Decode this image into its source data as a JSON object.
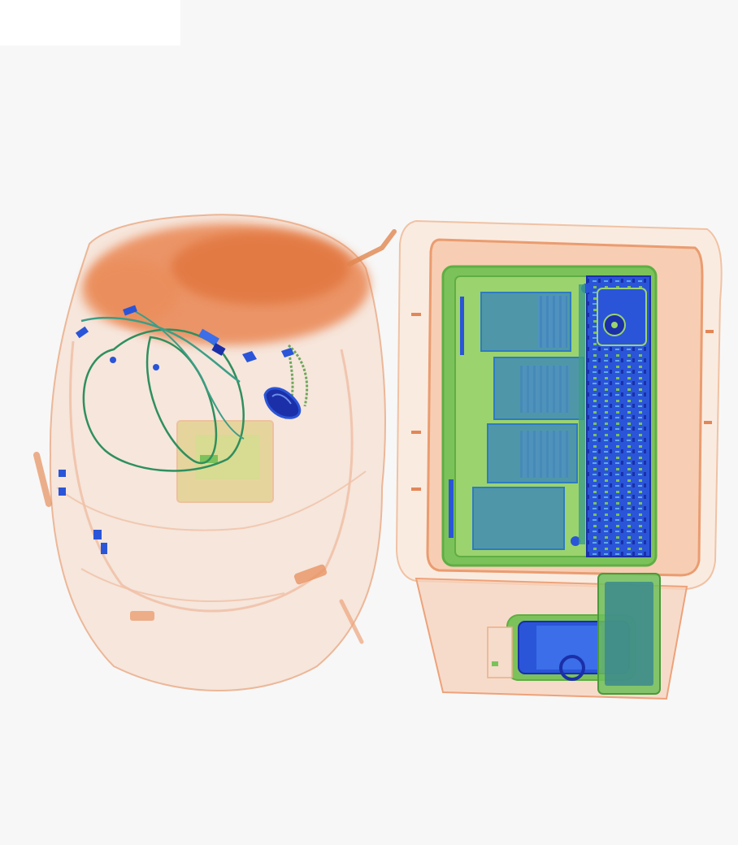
{
  "scene": {
    "type": "x-ray baggage scan",
    "palette": {
      "background": "#f7f7f7",
      "organic": "#e8793f",
      "organic_light": "#f4c3a6",
      "mixed": "#7cc25a",
      "mixed_light": "#c9e58a",
      "metal": "#2a55d8",
      "metal_dark": "#1a2fa8",
      "teal": "#3c9e86"
    }
  },
  "objects": [
    {
      "id": "backpack",
      "icon": "backpack-icon"
    },
    {
      "id": "laptop-bag",
      "icon": "bag-icon"
    },
    {
      "id": "laptop",
      "icon": "laptop-icon"
    },
    {
      "id": "phone",
      "icon": "phone-icon"
    },
    {
      "id": "power-bank",
      "icon": "battery-icon"
    },
    {
      "id": "cables",
      "icon": "cable-icon"
    }
  ]
}
